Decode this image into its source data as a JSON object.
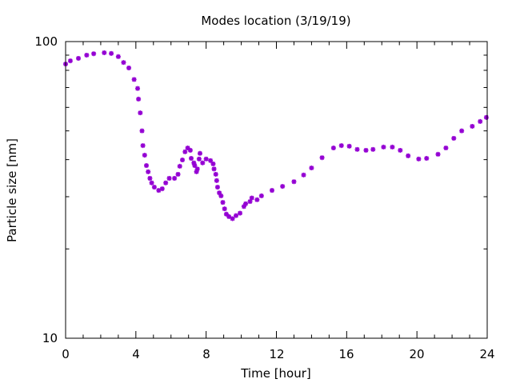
{
  "chart_data": {
    "type": "scatter",
    "title": "Modes location (3/19/19)",
    "xlabel": "Time [hour]",
    "ylabel": "Particle size [nm]",
    "xlim": [
      0,
      24
    ],
    "ylim": [
      10,
      100
    ],
    "yscale": "log",
    "x_ticks": [
      "0",
      "4",
      "8",
      "12",
      "16",
      "20",
      "24"
    ],
    "y_ticks": [
      "10",
      "100"
    ],
    "grid": false,
    "marker_color": "#9400d3",
    "series": [
      {
        "name": "mode",
        "x": [
          0,
          0.27,
          0.73,
          1.2,
          1.6,
          2.2,
          2.6,
          3.0,
          3.3,
          3.6,
          3.9,
          4.1,
          4.15,
          4.25,
          4.35,
          4.4,
          4.5,
          4.6,
          4.7,
          4.8,
          4.9,
          5.05,
          5.3,
          5.5,
          5.7,
          5.9,
          6.2,
          6.4,
          6.5,
          6.65,
          6.8,
          6.95,
          7.1,
          7.15,
          7.3,
          7.35,
          7.45,
          7.5,
          7.6,
          7.65,
          7.8,
          8.0,
          8.25,
          8.4,
          8.45,
          8.55,
          8.6,
          8.65,
          8.75,
          8.85,
          8.95,
          9.05,
          9.15,
          9.3,
          9.5,
          9.7,
          9.93,
          10.15,
          10.25,
          10.5,
          10.6,
          10.9,
          11.15,
          11.75,
          12.35,
          13.0,
          13.55,
          14.0,
          14.6,
          15.25,
          15.7,
          16.15,
          16.6,
          17.1,
          17.5,
          18.1,
          18.6,
          19.05,
          19.5,
          20.1,
          20.55,
          21.2,
          21.65,
          22.1,
          22.55,
          23.15,
          23.6,
          23.95
        ],
        "y": [
          84.0,
          86.1,
          87.8,
          90.0,
          91.0,
          91.7,
          91.2,
          89.0,
          85.0,
          81.5,
          74.5,
          69.5,
          64.0,
          57.5,
          50.0,
          44.6,
          41.4,
          38.2,
          36.4,
          34.6,
          33.4,
          32.3,
          31.5,
          31.9,
          33.4,
          34.6,
          34.6,
          35.7,
          38.0,
          39.9,
          42.5,
          43.8,
          43.0,
          40.4,
          39.0,
          38.2,
          36.4,
          37.2,
          40.2,
          42.0,
          39.0,
          40.2,
          39.7,
          38.7,
          37.2,
          35.7,
          34.0,
          32.3,
          30.9,
          30.2,
          28.7,
          27.3,
          26.2,
          25.7,
          25.3,
          25.9,
          26.4,
          27.8,
          28.4,
          28.9,
          29.7,
          29.3,
          30.2,
          31.5,
          32.5,
          33.7,
          35.5,
          37.5,
          40.6,
          43.8,
          44.6,
          44.4,
          43.3,
          43.0,
          43.3,
          44.1,
          44.1,
          43.0,
          41.2,
          40.2,
          40.4,
          41.7,
          43.8,
          47.2,
          50.0,
          51.8,
          53.8,
          55.5
        ]
      }
    ]
  }
}
